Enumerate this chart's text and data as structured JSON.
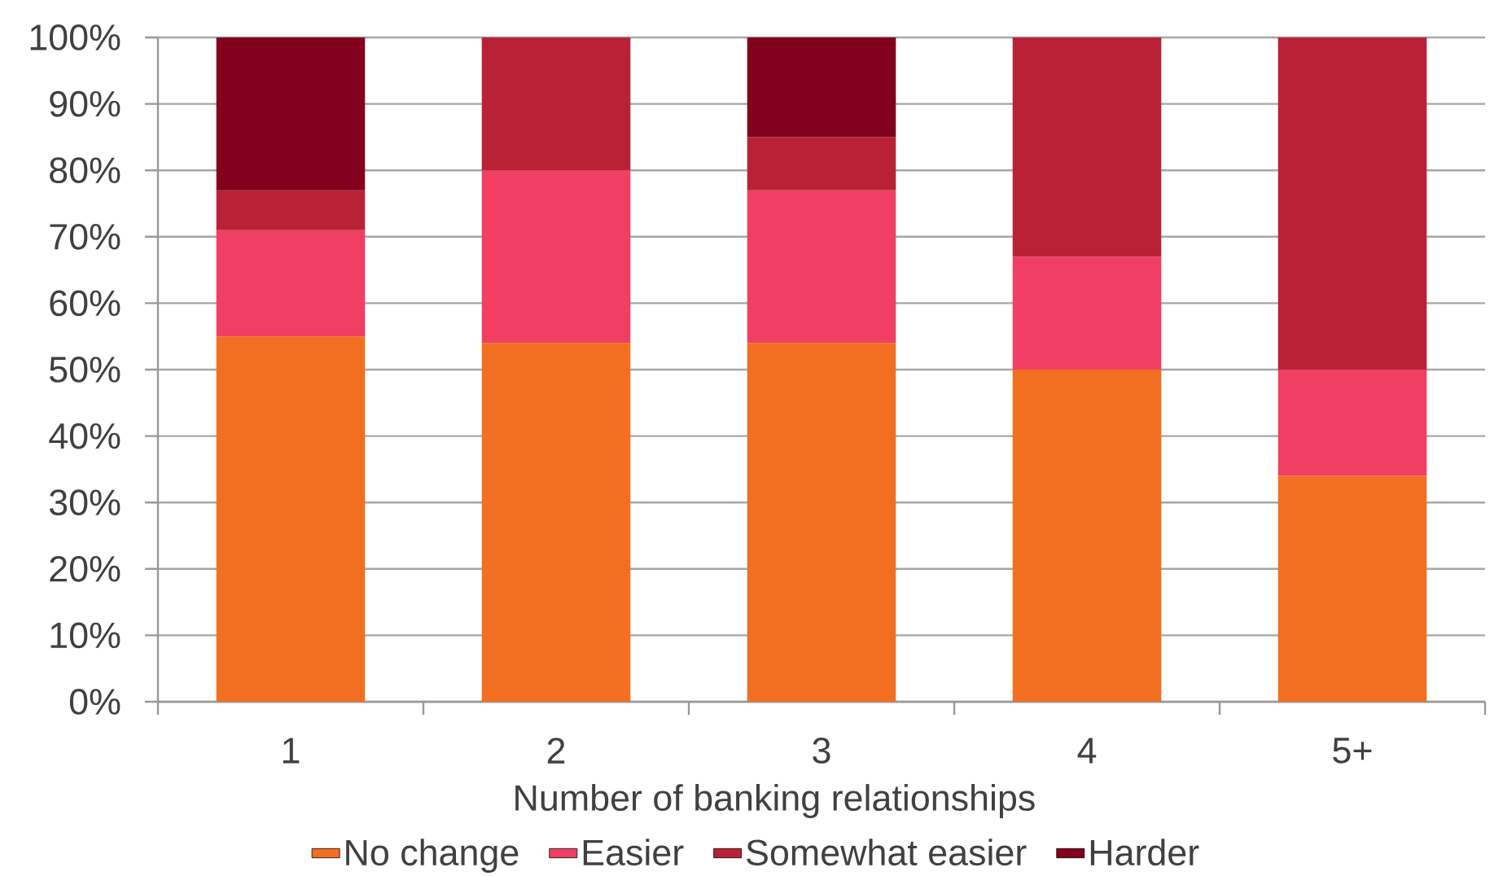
{
  "chart_data": {
    "type": "bar",
    "stacked": true,
    "xlabel": "Number of banking relationships",
    "categories": [
      "1",
      "2",
      "3",
      "4",
      "5+"
    ],
    "series": [
      {
        "name": "No change",
        "color": "#f26f21",
        "values": [
          55,
          54,
          54,
          50,
          34
        ]
      },
      {
        "name": "Easier",
        "color": "#f03f62",
        "values": [
          16,
          26,
          23,
          17,
          16
        ]
      },
      {
        "name": "Somewhat easier",
        "color": "#b92236",
        "values": [
          6,
          20,
          8,
          33,
          50
        ]
      },
      {
        "name": "Harder",
        "color": "#82001c",
        "values": [
          23,
          null,
          15,
          null,
          null
        ]
      }
    ],
    "ylim": [
      0,
      100
    ],
    "yticks": [
      {
        "value": 0,
        "label": "0%"
      },
      {
        "value": 10,
        "label": "10%"
      },
      {
        "value": 20,
        "label": "20%"
      },
      {
        "value": 30,
        "label": "30%"
      },
      {
        "value": 40,
        "label": "40%"
      },
      {
        "value": 50,
        "label": "50%"
      },
      {
        "value": 60,
        "label": "60%"
      },
      {
        "value": 70,
        "label": "70%"
      },
      {
        "value": 80,
        "label": "80%"
      },
      {
        "value": 90,
        "label": "90%"
      },
      {
        "value": 100,
        "label": "100%"
      }
    ],
    "grid": "y",
    "legend": "bottom"
  }
}
